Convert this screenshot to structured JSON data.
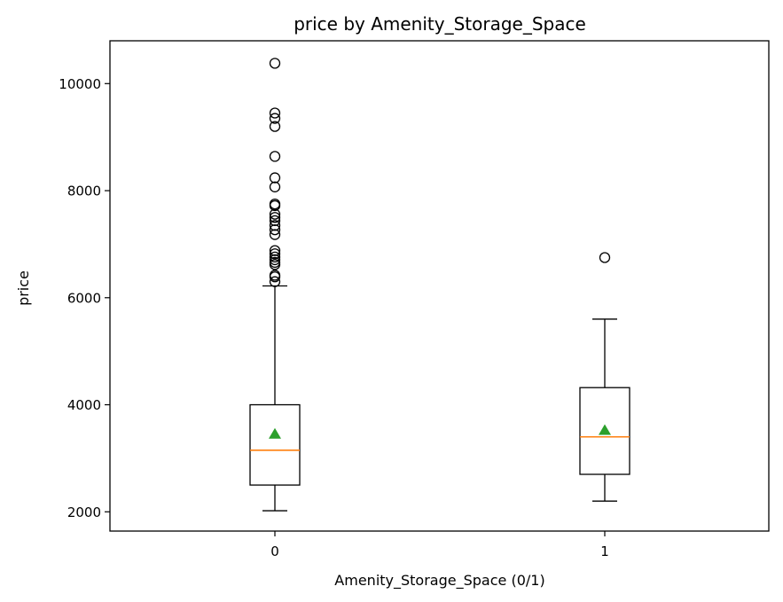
{
  "chart_data": {
    "type": "box",
    "title": "price by Amenity_Storage_Space",
    "xlabel": "Amenity_Storage_Space (0/1)",
    "ylabel": "price",
    "categories": [
      "0",
      "1"
    ],
    "ylim": [
      1640,
      10800
    ],
    "yticks": [
      2000,
      4000,
      6000,
      8000,
      10000
    ],
    "grid": false,
    "boxes": [
      {
        "category": "0",
        "whisker_low": 2020,
        "q1": 2500,
        "median": 3150,
        "q3": 4000,
        "whisker_high": 6220,
        "mean": 3450,
        "outliers": [
          6300,
          6390,
          6420,
          6620,
          6660,
          6710,
          6760,
          6820,
          6880,
          7180,
          7270,
          7350,
          7440,
          7500,
          7560,
          7720,
          7750,
          8070,
          8240,
          8640,
          9200,
          9350,
          9450,
          10380
        ]
      },
      {
        "category": "1",
        "whisker_low": 2200,
        "q1": 2700,
        "median": 3400,
        "q3": 4320,
        "whisker_high": 5600,
        "mean": 3520,
        "outliers": [
          6750
        ]
      }
    ],
    "colors": {
      "box": "#000000",
      "median": "#ff7f0e",
      "mean": "#2ca02c"
    }
  }
}
